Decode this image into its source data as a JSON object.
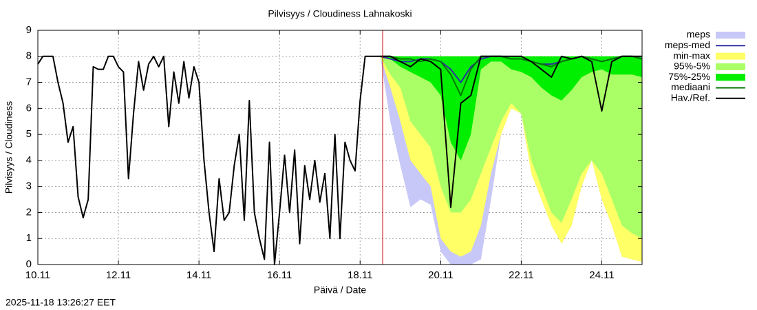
{
  "chart_data": {
    "type": "line",
    "title": "Pilvisyys / Cloudiness Lahnakoski",
    "xlabel": "Päivä / Date",
    "ylabel": "Pilvisyys / Cloudiness",
    "timestamp": "2025-11-18 13:26:27 EET",
    "xlim": [
      0,
      15
    ],
    "xticks": [
      {
        "value": 0,
        "label": "10.11"
      },
      {
        "value": 2,
        "label": "12.11"
      },
      {
        "value": 4,
        "label": "14.11"
      },
      {
        "value": 6,
        "label": "16.11"
      },
      {
        "value": 8,
        "label": "18.11"
      },
      {
        "value": 10,
        "label": "20.11"
      },
      {
        "value": 12,
        "label": "22.11"
      },
      {
        "value": 14,
        "label": "24.11"
      }
    ],
    "ylim": [
      0,
      9
    ],
    "yticks": [
      0,
      1,
      2,
      3,
      4,
      5,
      6,
      7,
      8,
      9
    ],
    "grid": true,
    "legend": "outside-right",
    "now_x": 8.56,
    "now_color": "#cc0000",
    "series": [
      {
        "name": "meps",
        "color": "#c8c8f8",
        "x": [
          8.5,
          8.75,
          9,
          9.25,
          9.5,
          9.75,
          10,
          10.25,
          10.5,
          10.75,
          11,
          11.25,
          11.5,
          11.75,
          12,
          12.25,
          12.5,
          12.75,
          13,
          13.25,
          13.5,
          13.75,
          14,
          14.25,
          14.5,
          14.75,
          15
        ],
        "lower": [
          8,
          5.5,
          3.8,
          2.2,
          2.5,
          2.3,
          0.5,
          0,
          0,
          0,
          0.2,
          2.5,
          5,
          6,
          5.8,
          3.5,
          2.5,
          1.5,
          0.8,
          1.5,
          3,
          4,
          2.5,
          1.5,
          0.3,
          0.2,
          0.1
        ],
        "upper": [
          8,
          8,
          8,
          8,
          8,
          8,
          8,
          8,
          8,
          8,
          8,
          8,
          8,
          8,
          8,
          8,
          8,
          8,
          8,
          8,
          8,
          8,
          8,
          8,
          8,
          8,
          8
        ]
      },
      {
        "name": "meps-med",
        "color": "#3030a0",
        "x": [
          8.5,
          8.75,
          9,
          9.25,
          9.5,
          9.75,
          10,
          10.25,
          10.5,
          10.75,
          11,
          11.25,
          11.5,
          11.75,
          12,
          12.25,
          12.5,
          12.75,
          13,
          13.25,
          13.5,
          13.75,
          14,
          14.25,
          14.5,
          14.75,
          15
        ],
        "values": [
          8,
          7.9,
          7.8,
          7.8,
          7.9,
          7.9,
          7.8,
          7.5,
          7,
          7.6,
          7.9,
          8,
          8,
          7.9,
          7.9,
          7.8,
          7.7,
          7.7,
          7.8,
          7.9,
          8,
          7.9,
          7.8,
          7.9,
          8,
          8,
          7.9
        ]
      },
      {
        "name": "min-max",
        "color": "#ffff66",
        "x": [
          8.5,
          8.75,
          9,
          9.25,
          9.5,
          9.75,
          10,
          10.25,
          10.5,
          10.75,
          11,
          11.25,
          11.5,
          11.75,
          12,
          12.25,
          12.5,
          12.75,
          13,
          13.25,
          13.5,
          13.75,
          14,
          14.25,
          14.5,
          14.75,
          15
        ],
        "lower": [
          8,
          6.8,
          5.5,
          4,
          3.5,
          3,
          1,
          0.5,
          0.3,
          0.5,
          1.5,
          3.5,
          5,
          6,
          5.8,
          3.5,
          2.5,
          1.5,
          0.8,
          1.5,
          3,
          4,
          2.5,
          1.5,
          0.3,
          0.2,
          0.1
        ],
        "upper": [
          8,
          8,
          8,
          8,
          8,
          8,
          8,
          8,
          8,
          8,
          8,
          8,
          8,
          8,
          8,
          8,
          8,
          8,
          8,
          8,
          8,
          8,
          8,
          8,
          8,
          8,
          8
        ]
      },
      {
        "name": "95%-5%",
        "color": "#aaff66",
        "x": [
          8.5,
          8.75,
          9,
          9.25,
          9.5,
          9.75,
          10,
          10.25,
          10.5,
          10.75,
          11,
          11.25,
          11.5,
          11.75,
          12,
          12.25,
          12.5,
          12.75,
          13,
          13.25,
          13.5,
          13.75,
          14,
          14.25,
          14.5,
          14.75,
          15
        ],
        "lower": [
          8,
          7.3,
          6.8,
          5.5,
          5,
          4.5,
          3,
          2,
          2,
          2.5,
          3.5,
          4.5,
          5.5,
          6.2,
          5.8,
          4,
          3,
          2,
          1.6,
          2.5,
          3.5,
          4,
          3.5,
          2.5,
          1.5,
          1.2,
          1
        ],
        "upper": [
          8,
          8,
          8,
          8,
          8,
          8,
          8,
          8,
          8,
          8,
          8,
          8,
          8,
          8,
          8,
          8,
          8,
          8,
          8,
          8,
          8,
          8,
          8,
          8,
          8,
          8,
          8
        ]
      },
      {
        "name": "75%-25%",
        "color": "#00ee00",
        "x": [
          8.5,
          8.75,
          9,
          9.25,
          9.5,
          9.75,
          10,
          10.25,
          10.5,
          10.75,
          11,
          11.25,
          11.5,
          11.75,
          12,
          12.25,
          12.5,
          12.75,
          13,
          13.25,
          13.5,
          13.75,
          14,
          14.25,
          14.5,
          14.75,
          15
        ],
        "lower": [
          8,
          7.9,
          7.6,
          7.4,
          7.2,
          7,
          6.5,
          4.7,
          4,
          5,
          7.5,
          7.8,
          7.8,
          7.5,
          7.4,
          7.2,
          6.8,
          6.5,
          6.3,
          6.7,
          7.2,
          7.4,
          7.5,
          7.3,
          7.3,
          7.3,
          7.2
        ],
        "upper": [
          8,
          8,
          8,
          8,
          8,
          8,
          8,
          8,
          8,
          8,
          8,
          8,
          8,
          8,
          8,
          8,
          8,
          8,
          8,
          8,
          8,
          8,
          8,
          8,
          8,
          8,
          8
        ]
      },
      {
        "name": "mediaani",
        "color": "#007700",
        "x": [
          8.5,
          8.75,
          9,
          9.25,
          9.5,
          9.75,
          10,
          10.25,
          10.5,
          10.75,
          11,
          11.25,
          11.5,
          11.75,
          12,
          12.25,
          12.5,
          12.75,
          13,
          13.25,
          13.5,
          13.75,
          14,
          14.25,
          14.5,
          14.75,
          15
        ],
        "values": [
          8,
          8,
          7.9,
          7.9,
          7.8,
          7.9,
          7.8,
          7.3,
          6.5,
          7.5,
          8,
          8,
          8,
          7.9,
          7.9,
          7.8,
          7.7,
          7.6,
          7.8,
          7.9,
          8,
          7.9,
          7.8,
          7.9,
          8,
          8,
          7.9
        ]
      },
      {
        "name": "Hav./Ref.",
        "color": "#000000",
        "x": [
          0,
          0.125,
          0.25,
          0.375,
          0.5,
          0.625,
          0.75,
          0.875,
          1,
          1.125,
          1.25,
          1.375,
          1.5,
          1.625,
          1.75,
          1.875,
          2,
          2.125,
          2.25,
          2.375,
          2.5,
          2.625,
          2.75,
          2.875,
          3,
          3.125,
          3.25,
          3.375,
          3.5,
          3.625,
          3.75,
          3.875,
          4,
          4.125,
          4.25,
          4.375,
          4.5,
          4.625,
          4.75,
          4.875,
          5,
          5.125,
          5.25,
          5.375,
          5.5,
          5.625,
          5.75,
          5.875,
          6,
          6.125,
          6.25,
          6.375,
          6.5,
          6.625,
          6.75,
          6.875,
          7,
          7.125,
          7.25,
          7.375,
          7.5,
          7.625,
          7.75,
          7.875,
          8,
          8.125,
          8.25,
          8.375,
          8.5,
          8.75,
          9,
          9.25,
          9.5,
          9.75,
          10,
          10.25,
          10.5,
          10.75,
          11,
          11.25,
          11.5,
          11.75,
          12,
          12.25,
          12.5,
          12.75,
          13,
          13.25,
          13.5,
          13.75,
          14,
          14.25,
          14.5,
          14.75,
          15
        ],
        "values": [
          7.7,
          8,
          8,
          8,
          7,
          6.2,
          4.7,
          5.3,
          2.6,
          1.8,
          2.5,
          7.6,
          7.5,
          7.5,
          8,
          8,
          7.6,
          7.4,
          3.3,
          5.8,
          7.8,
          6.7,
          7.7,
          8,
          7.6,
          8,
          5.3,
          7.4,
          6.2,
          7.8,
          6.4,
          7.6,
          7,
          4,
          2,
          0.5,
          3.3,
          1.7,
          2,
          3.8,
          5,
          1.7,
          6.3,
          2,
          1,
          0.2,
          4.7,
          0,
          2,
          4.2,
          2,
          4.4,
          0.8,
          3.8,
          2.5,
          4,
          2.4,
          3.5,
          1,
          5,
          1,
          4.7,
          4,
          3.6,
          6.3,
          8,
          8,
          8,
          8,
          8,
          7.8,
          7.6,
          7.9,
          7.8,
          7.5,
          2.2,
          6.2,
          6.5,
          8,
          8,
          8,
          8,
          8,
          7.8,
          7.5,
          7.2,
          8,
          7.9,
          8,
          7.8,
          5.9,
          7.8,
          8,
          8,
          8
        ]
      }
    ]
  }
}
